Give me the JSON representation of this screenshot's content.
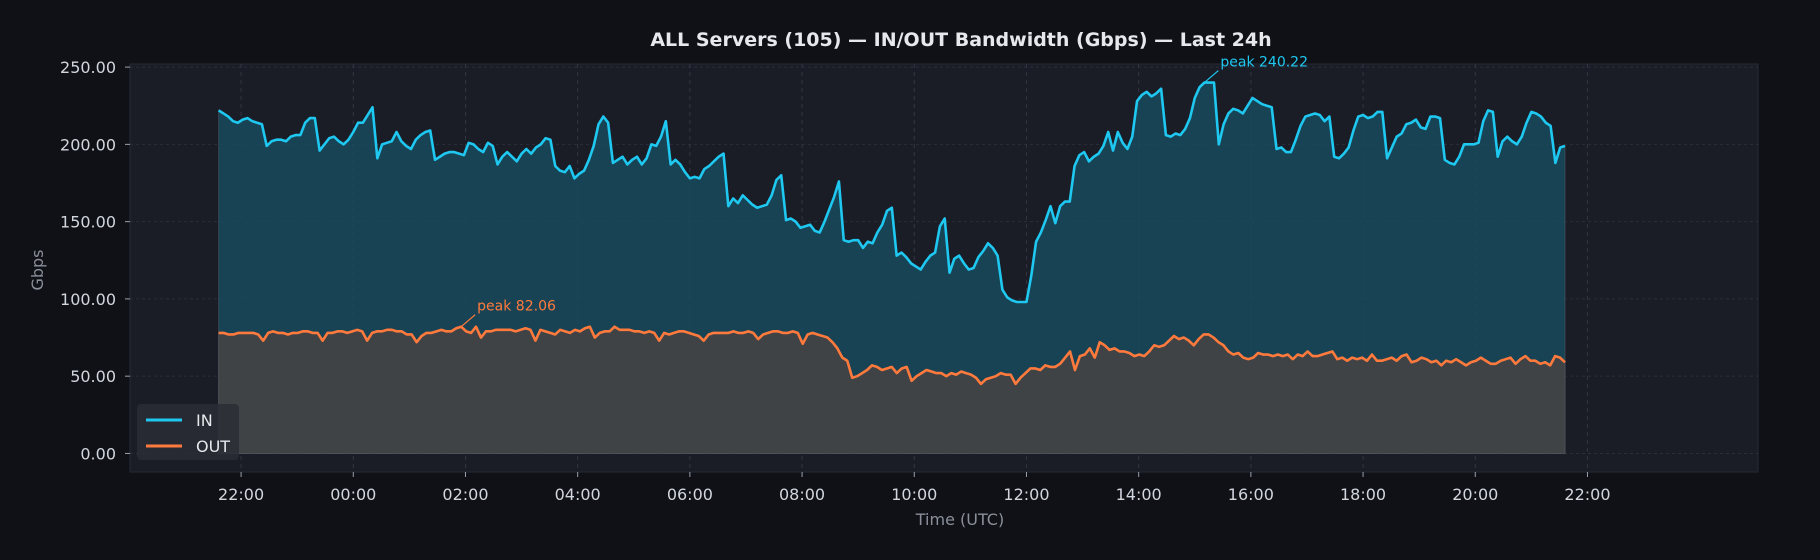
{
  "chart_data": {
    "type": "area",
    "title": "ALL Servers (105) — IN/OUT Bandwidth (Gbps) — Last 24h",
    "xlabel": "Time (UTC)",
    "ylabel": "Gbps",
    "ylim": [
      -12,
      252
    ],
    "yticks": [
      0,
      50,
      100,
      150,
      200,
      250
    ],
    "ytick_labels": [
      "0.00",
      "50.00",
      "100.00",
      "150.00",
      "200.00",
      "250.00"
    ],
    "xlim_hours": [
      -3.98,
      25.04
    ],
    "xticks_hours": [
      -2,
      0,
      2,
      4,
      6,
      8,
      10,
      12,
      14,
      16,
      18,
      20,
      22
    ],
    "xtick_labels": [
      "22:00",
      "00:00",
      "02:00",
      "04:00",
      "06:00",
      "08:00",
      "10:00",
      "12:00",
      "14:00",
      "16:00",
      "18:00",
      "20:00",
      "22:00"
    ],
    "grid": true,
    "legend_position": "lower-left",
    "x_start_hour": -2.4,
    "x_end_hour": 21.6,
    "series": [
      {
        "name": "IN",
        "color": "#1ec8f0",
        "fill": "#174a5e",
        "values": [
          222,
          220,
          218,
          215,
          214,
          216,
          217,
          215,
          214,
          213,
          199,
          202,
          203,
          203,
          202,
          205,
          206,
          206,
          214,
          217,
          217,
          196,
          200,
          204,
          205,
          202,
          200,
          203,
          208,
          214,
          214,
          219,
          224,
          191,
          200,
          201,
          202,
          208,
          202,
          199,
          197,
          203,
          206,
          208,
          209,
          190,
          192,
          194,
          195,
          195,
          194,
          193,
          201,
          200,
          197,
          195,
          201,
          199,
          187,
          192,
          195,
          192,
          189,
          194,
          197,
          194,
          198,
          200,
          204,
          203,
          186,
          183,
          182,
          186,
          178,
          181,
          183,
          190,
          199,
          213,
          218,
          214,
          188,
          190,
          192,
          187,
          190,
          192,
          187,
          191,
          200,
          199,
          205,
          215,
          187,
          190,
          187,
          182,
          178,
          179,
          178,
          184,
          186,
          189,
          192,
          194,
          160,
          165,
          162,
          167,
          164,
          161,
          159,
          160,
          161,
          167,
          177,
          180,
          151,
          152,
          150,
          146,
          147,
          148,
          144,
          143,
          150,
          158,
          166,
          176,
          138,
          137,
          138,
          138,
          133,
          137,
          136,
          143,
          148,
          157,
          159,
          128,
          130,
          127,
          123,
          121,
          119,
          124,
          128,
          130,
          147,
          152,
          117,
          126,
          128,
          123,
          119,
          120,
          127,
          131,
          136,
          133,
          128,
          106,
          101,
          99,
          98,
          98,
          98,
          115,
          137,
          143,
          151,
          160,
          149,
          160,
          163,
          163,
          186,
          193,
          195,
          189,
          192,
          194,
          199,
          208,
          196,
          208,
          201,
          197,
          205,
          228,
          232,
          234,
          231,
          233,
          236,
          206,
          205,
          207,
          206,
          210,
          217,
          230,
          237,
          240,
          240,
          240,
          200,
          213,
          220,
          223,
          222,
          220,
          225,
          230,
          228,
          226,
          225,
          224,
          197,
          198,
          195,
          195,
          203,
          212,
          218,
          219,
          220,
          219,
          215,
          218,
          192,
          191,
          194,
          198,
          209,
          218,
          219,
          217,
          218,
          221,
          221,
          191,
          198,
          205,
          207,
          213,
          214,
          216,
          211,
          210,
          218,
          218,
          217,
          190,
          188,
          187,
          192,
          200,
          200,
          200,
          201,
          215,
          222,
          221,
          192,
          202,
          205,
          202,
          200,
          205,
          214,
          221,
          220,
          218,
          214,
          212,
          188,
          198,
          199
        ]
      },
      {
        "name": "OUT",
        "color": "#ff7a3c",
        "fill": "#404346",
        "values": [
          78,
          78,
          77,
          77,
          78,
          78,
          78,
          78,
          77,
          73,
          78,
          79,
          78,
          78,
          77,
          78,
          78,
          79,
          79,
          78,
          78,
          73,
          78,
          78,
          79,
          79,
          78,
          79,
          80,
          79,
          73,
          78,
          79,
          79,
          80,
          80,
          79,
          79,
          77,
          77,
          72,
          76,
          78,
          78,
          79,
          80,
          79,
          79,
          81,
          82,
          79,
          78,
          82,
          75,
          79,
          79,
          80,
          80,
          80,
          80,
          79,
          80,
          81,
          80,
          73,
          80,
          79,
          78,
          77,
          80,
          79,
          78,
          80,
          79,
          81,
          82,
          75,
          78,
          79,
          79,
          82,
          80,
          80,
          80,
          79,
          79,
          78,
          79,
          78,
          73,
          78,
          77,
          78,
          79,
          79,
          78,
          77,
          76,
          73,
          77,
          78,
          78,
          78,
          78,
          79,
          78,
          78,
          79,
          78,
          74,
          77,
          78,
          79,
          79,
          78,
          78,
          79,
          78,
          71,
          77,
          78,
          77,
          76,
          75,
          72,
          68,
          62,
          60,
          49,
          50,
          52,
          54,
          57,
          56,
          54,
          55,
          56,
          52,
          55,
          56,
          47,
          50,
          52,
          54,
          53,
          52,
          52,
          50,
          52,
          51,
          53,
          52,
          51,
          49,
          45,
          48,
          49,
          50,
          52,
          51,
          51,
          45,
          49,
          52,
          55,
          55,
          54,
          57,
          56,
          56,
          58,
          62,
          66,
          54,
          63,
          64,
          68,
          62,
          72,
          70,
          67,
          68,
          66,
          66,
          65,
          63,
          64,
          63,
          66,
          70,
          69,
          70,
          73,
          76,
          74,
          75,
          73,
          70,
          74,
          77,
          77,
          75,
          72,
          70,
          66,
          64,
          65,
          62,
          61,
          62,
          65,
          64,
          64,
          63,
          64,
          63,
          64,
          61,
          64,
          63,
          66,
          63,
          63,
          64,
          65,
          66,
          61,
          62,
          60,
          62,
          61,
          62,
          60,
          64,
          60,
          60,
          61,
          62,
          60,
          63,
          64,
          59,
          60,
          62,
          61,
          59,
          60,
          57,
          60,
          59,
          61,
          59,
          57,
          59,
          60,
          62,
          60,
          58,
          58,
          60,
          61,
          62,
          58,
          61,
          63,
          60,
          60,
          58,
          59,
          57,
          63,
          62,
          59
        ]
      }
    ],
    "annotations": [
      {
        "text": "peak 82.06",
        "series": "OUT",
        "color": "#ff7a3c"
      },
      {
        "text": "peak 240.22",
        "series": "IN",
        "color": "#1ec8f0"
      }
    ]
  }
}
